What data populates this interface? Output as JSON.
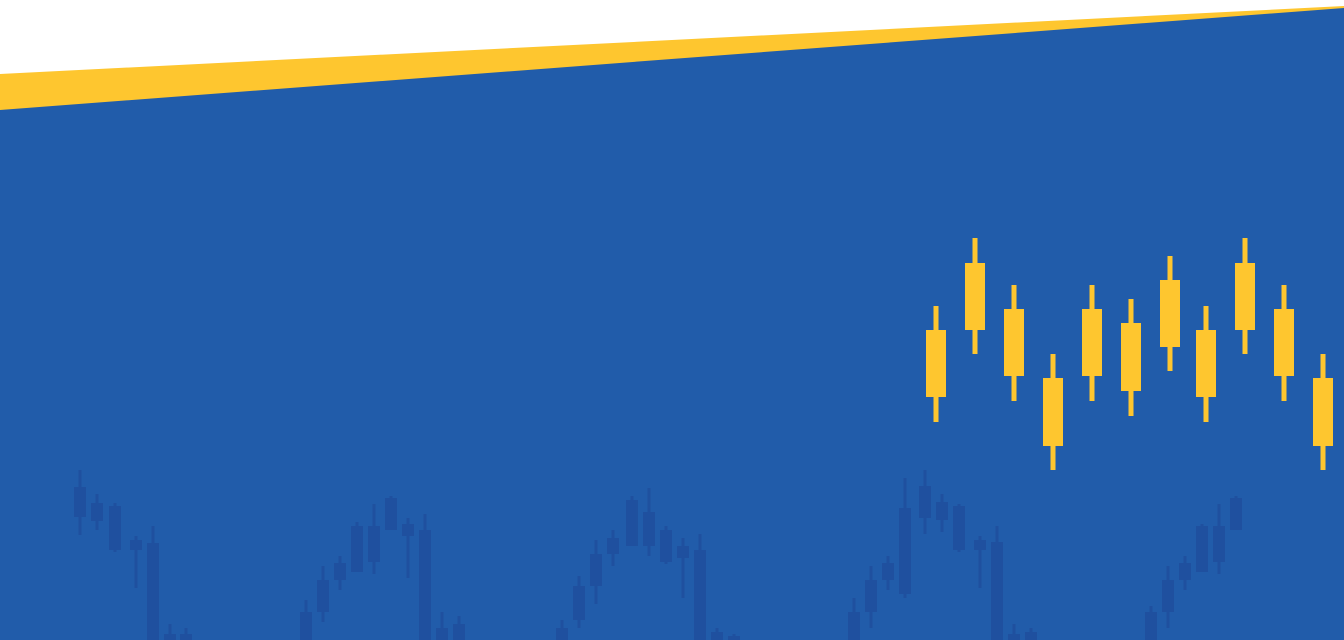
{
  "colors": {
    "background": "#ffffff",
    "stripe": "#fec62f",
    "panel": "#215caa",
    "candle_highlight": "#fec62f",
    "candle_shadow": "#1f4f9e"
  }
}
